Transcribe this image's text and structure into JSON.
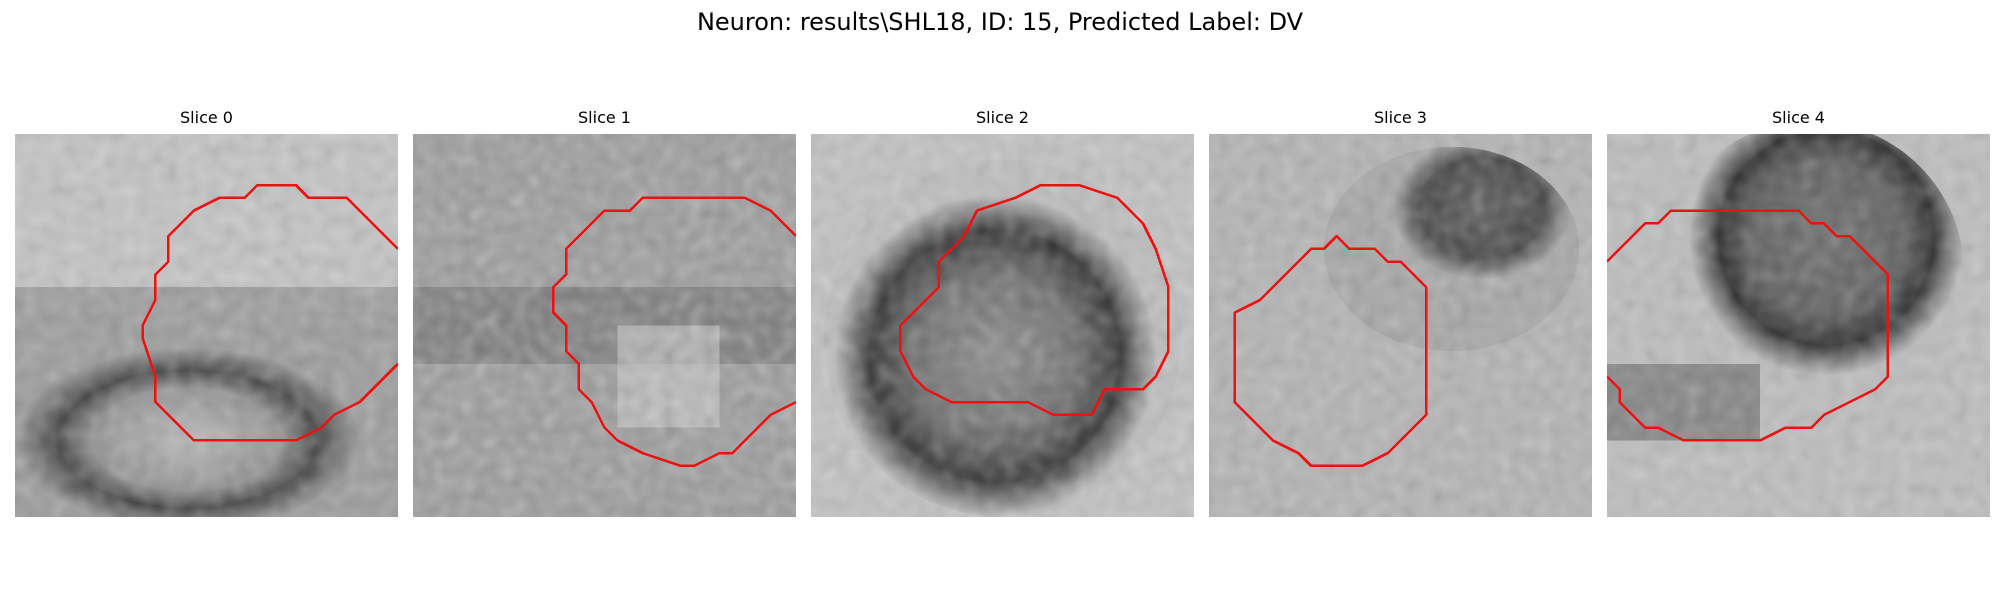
{
  "figure": {
    "title": "Neuron: results\\SHL18, ID: 15, Predicted Label: DV",
    "contour_color": "#ee1111"
  },
  "slices": [
    {
      "title": "Slice 0"
    },
    {
      "title": "Slice 1"
    },
    {
      "title": "Slice 2"
    },
    {
      "title": "Slice 3"
    },
    {
      "title": "Slice 4"
    }
  ]
}
